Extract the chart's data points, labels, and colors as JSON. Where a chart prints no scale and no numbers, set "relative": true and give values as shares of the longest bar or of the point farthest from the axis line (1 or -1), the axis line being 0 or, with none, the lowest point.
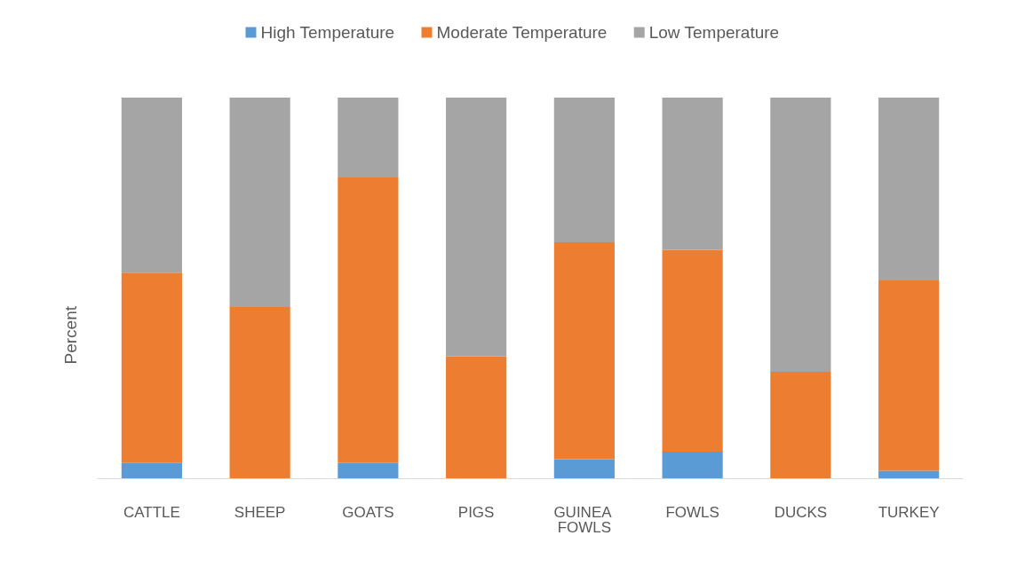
{
  "chart_data": {
    "type": "bar",
    "stacked": true,
    "relative": true,
    "ylabel": "Percent",
    "legend": "top",
    "categories": [
      "CATTLE",
      "SHEEP",
      "GOATS",
      "PIGS",
      "GUINEA FOWLS",
      "FOWLS",
      "DUCKS",
      "TURKEY"
    ],
    "series": [
      {
        "name": "High Temperature",
        "color": "#5b9bd5",
        "values": [
          0.04,
          0,
          0.04,
          0,
          0.05,
          0.07,
          0,
          0.02
        ]
      },
      {
        "name": "Moderate Temperature",
        "color": "#ed7d31",
        "values": [
          0.5,
          0.45,
          0.75,
          0.32,
          0.57,
          0.53,
          0.28,
          0.5
        ]
      },
      {
        "name": "Low Temperature",
        "color": "#a5a5a5",
        "values": [
          0.46,
          0.55,
          0.21,
          0.68,
          0.38,
          0.4,
          0.72,
          0.48
        ]
      }
    ]
  }
}
